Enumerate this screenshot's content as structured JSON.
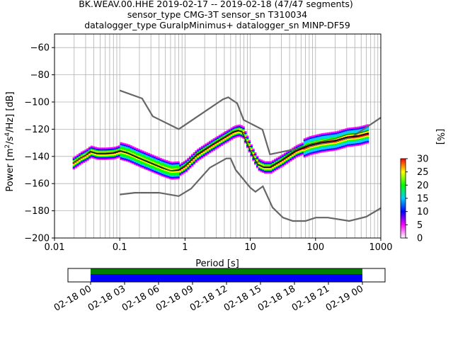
{
  "chart_data": {
    "type": "ppsd",
    "title_lines": [
      "BK.WEAV.00.HHE   2019-02-17 -- 2019-02-18  (47/47 segments)",
      "sensor_type CMG-3T sensor_sn T310034",
      "datalogger_type GuralpMinimus+ datalogger_sn MINP-DF59"
    ],
    "xlabel": "Period [s]",
    "ylabel_main": "Power [m",
    "ylabel_sup1": "2",
    "ylabel_mid": "/s",
    "ylabel_sup2": "4",
    "ylabel_end": "/Hz] [dB]",
    "xscale": "log",
    "xlim": [
      0.01,
      1000
    ],
    "ylim": [
      -200,
      -50
    ],
    "xticks": [
      {
        "value": 0.01,
        "label": "0.01"
      },
      {
        "value": 0.1,
        "label": "0.1"
      },
      {
        "value": 1,
        "label": "1"
      },
      {
        "value": 10,
        "label": "10"
      },
      {
        "value": 100,
        "label": "100"
      },
      {
        "value": 1000,
        "label": "1000"
      }
    ],
    "yticks": [
      -60,
      -80,
      -100,
      -120,
      -140,
      -160,
      -180,
      -200
    ],
    "grid": true,
    "series": [
      {
        "role": "upper-noise-model",
        "color": "#666666",
        "points": [
          [
            0.1,
            -91.5
          ],
          [
            0.22,
            -97.4
          ],
          [
            0.32,
            -110.5
          ],
          [
            0.8,
            -120.0
          ],
          [
            3.8,
            -98.0
          ],
          [
            4.6,
            -96.5
          ],
          [
            6.3,
            -101.0
          ],
          [
            7.9,
            -113.2
          ],
          [
            15.4,
            -120.3
          ],
          [
            20.0,
            -138.5
          ],
          [
            354.8,
            -126.0
          ],
          [
            1000,
            -111.5
          ]
        ]
      },
      {
        "role": "lower-noise-model",
        "color": "#666666",
        "points": [
          [
            0.1,
            -168.0
          ],
          [
            0.17,
            -166.7
          ],
          [
            0.4,
            -166.7
          ],
          [
            0.8,
            -169.2
          ],
          [
            1.24,
            -163.7
          ],
          [
            2.4,
            -148.3
          ],
          [
            4.3,
            -141.5
          ],
          [
            5.0,
            -141.5
          ],
          [
            6.0,
            -150.0
          ],
          [
            10.0,
            -163.0
          ],
          [
            12.0,
            -166.0
          ],
          [
            15.6,
            -162.0
          ],
          [
            21.9,
            -177.5
          ],
          [
            31.6,
            -185.0
          ],
          [
            45.0,
            -187.5
          ],
          [
            70.0,
            -187.5
          ],
          [
            101.0,
            -185.0
          ],
          [
            154.0,
            -185.0
          ],
          [
            328.0,
            -187.5
          ],
          [
            600.0,
            -184.4
          ],
          [
            1000,
            -178.0
          ]
        ]
      },
      {
        "role": "mean",
        "color": "#000000",
        "points": [
          [
            0.019,
            -145
          ],
          [
            0.025,
            -141
          ],
          [
            0.03,
            -139
          ],
          [
            0.035,
            -136.5
          ],
          [
            0.045,
            -138
          ],
          [
            0.06,
            -138
          ],
          [
            0.08,
            -137.5
          ],
          [
            0.1,
            -136
          ],
          [
            0.13,
            -137.5
          ],
          [
            0.2,
            -141.5
          ],
          [
            0.3,
            -145
          ],
          [
            0.45,
            -148.5
          ],
          [
            0.6,
            -150.5
          ],
          [
            0.8,
            -150
          ],
          [
            1.0,
            -147
          ],
          [
            1.5,
            -139
          ],
          [
            2.5,
            -132
          ],
          [
            4.0,
            -126
          ],
          [
            5.5,
            -122
          ],
          [
            6.5,
            -121
          ],
          [
            7.5,
            -122
          ],
          [
            9.0,
            -131
          ],
          [
            11.0,
            -140
          ],
          [
            13.0,
            -146
          ],
          [
            16.0,
            -148
          ],
          [
            20.0,
            -148
          ],
          [
            30.0,
            -143
          ],
          [
            50.0,
            -136
          ],
          [
            80.0,
            -132
          ],
          [
            120.0,
            -130
          ],
          [
            200.0,
            -128.5
          ],
          [
            300.0,
            -126
          ],
          [
            450.0,
            -125
          ],
          [
            650.0,
            -123
          ]
        ]
      },
      {
        "role": "mode",
        "color": "#1a7a1a",
        "points": [
          [
            0.019,
            -145
          ],
          [
            0.025,
            -141
          ],
          [
            0.03,
            -139
          ],
          [
            0.035,
            -136
          ],
          [
            0.045,
            -137.5
          ],
          [
            0.06,
            -137.5
          ],
          [
            0.08,
            -137
          ],
          [
            0.1,
            -135.5
          ],
          [
            0.13,
            -137
          ],
          [
            0.2,
            -141
          ],
          [
            0.3,
            -144.5
          ],
          [
            0.45,
            -148
          ],
          [
            0.6,
            -150.5
          ],
          [
            0.8,
            -149.5
          ],
          [
            1.0,
            -146.5
          ],
          [
            1.5,
            -138.5
          ],
          [
            2.5,
            -131.5
          ],
          [
            4.0,
            -125.5
          ],
          [
            5.5,
            -121.5
          ],
          [
            6.5,
            -120.5
          ],
          [
            7.5,
            -121.5
          ],
          [
            9.0,
            -130.5
          ],
          [
            11.0,
            -139.5
          ],
          [
            13.0,
            -145.5
          ],
          [
            16.0,
            -147.5
          ],
          [
            20.0,
            -147.5
          ],
          [
            30.0,
            -142.5
          ],
          [
            50.0,
            -135
          ],
          [
            80.0,
            -131
          ],
          [
            120.0,
            -129
          ],
          [
            200.0,
            -127
          ],
          [
            300.0,
            -124
          ],
          [
            450.0,
            -123
          ],
          [
            650.0,
            -121
          ]
        ]
      }
    ],
    "colorbar": {
      "ticks": [
        0,
        5,
        10,
        15,
        20,
        25,
        30
      ],
      "label": "[%]",
      "colors": [
        "#ffffff",
        "#ff00ff",
        "#0000ff",
        "#00ccff",
        "#00ff00",
        "#ffff00",
        "#ff0000"
      ]
    },
    "timeline": {
      "ticks": [
        "02-18 00",
        "02-18 03",
        "02-18 06",
        "02-18 09",
        "02-18 12",
        "02-18 15",
        "02-18 18",
        "02-18 21",
        "02-19 00"
      ],
      "xlim_hours": [
        -2,
        26
      ],
      "coverage_hours": [
        0,
        24
      ],
      "colors": [
        "#008000",
        "#0000ff"
      ]
    }
  }
}
